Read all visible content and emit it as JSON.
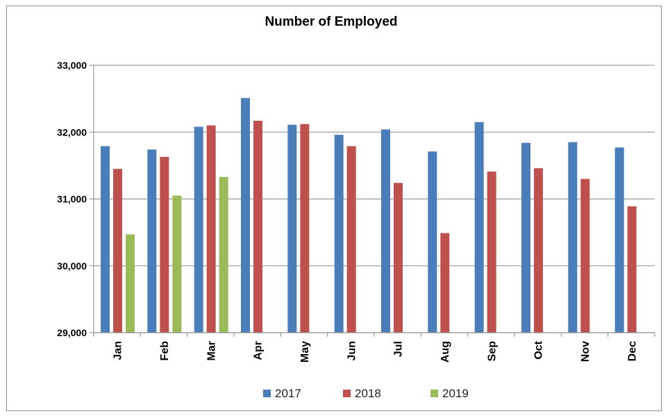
{
  "chart_data": {
    "type": "bar",
    "title": "Number of Employed",
    "xlabel": "",
    "ylabel": "",
    "categories": [
      "Jan",
      "Feb",
      "Mar",
      "Apr",
      "May",
      "Jun",
      "Jul",
      "Aug",
      "Sep",
      "Oct",
      "Nov",
      "Dec"
    ],
    "series": [
      {
        "name": "2017",
        "color": "#4a7ebb",
        "values": [
          31790,
          31740,
          32080,
          32510,
          32110,
          31960,
          32040,
          31710,
          32150,
          31840,
          31850,
          31770
        ]
      },
      {
        "name": "2018",
        "color": "#c0504d",
        "values": [
          31450,
          31630,
          32100,
          32170,
          32120,
          31790,
          31240,
          30490,
          31410,
          31460,
          31300,
          30890
        ]
      },
      {
        "name": "2019",
        "color": "#9bbb59",
        "values": [
          30470,
          31050,
          31330,
          null,
          null,
          null,
          null,
          null,
          null,
          null,
          null,
          null
        ]
      }
    ],
    "ylim": [
      29000,
      33000
    ],
    "yticks": [
      29000,
      30000,
      31000,
      32000,
      33000
    ],
    "ytick_labels": [
      "29,000",
      "30,000",
      "31,000",
      "32,000",
      "33,000"
    ],
    "grid": "horizontal",
    "legend_position": "bottom"
  }
}
